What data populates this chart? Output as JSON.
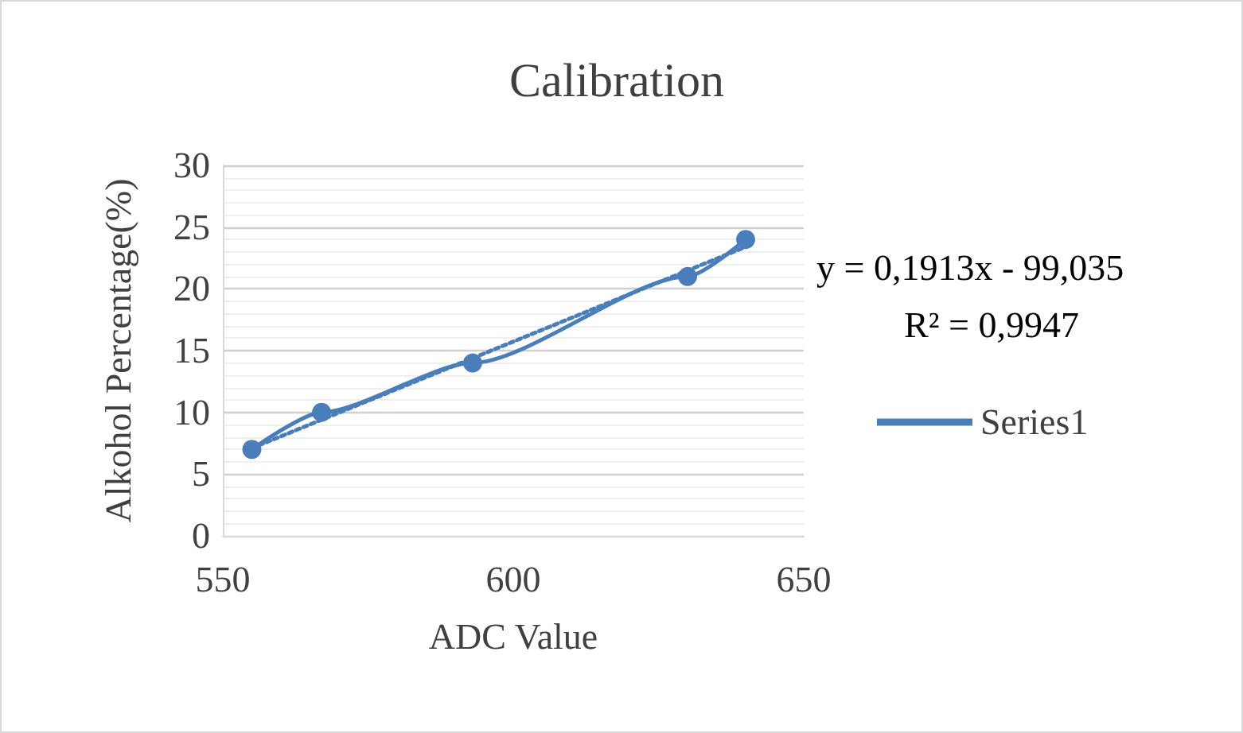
{
  "chart_data": {
    "type": "line",
    "title": "Calibration",
    "xlabel": "ADC Value",
    "ylabel": "Alkohol Percentage(%)",
    "xlim": [
      550,
      650
    ],
    "xticks": [
      550,
      600,
      650
    ],
    "ylim": [
      0,
      30
    ],
    "yticks": [
      0,
      5,
      10,
      15,
      20,
      25,
      30
    ],
    "grid": "y",
    "legend": "right",
    "series": [
      {
        "name": "Series1",
        "color": "#4a7ebb",
        "x": [
          555,
          567,
          593,
          630,
          640
        ],
        "values": [
          7,
          10,
          14,
          21,
          24
        ],
        "marker": "circle",
        "line_style": "solid"
      },
      {
        "type": "line",
        "color": "#4a7ebb",
        "x": [
          555,
          640
        ],
        "values": [
          7.1,
          23.4
        ],
        "marker": "none",
        "line_style": "dotted"
      }
    ],
    "annotations": [
      "y = 0,1913x - 99,035",
      "R² = 0,9947"
    ]
  }
}
